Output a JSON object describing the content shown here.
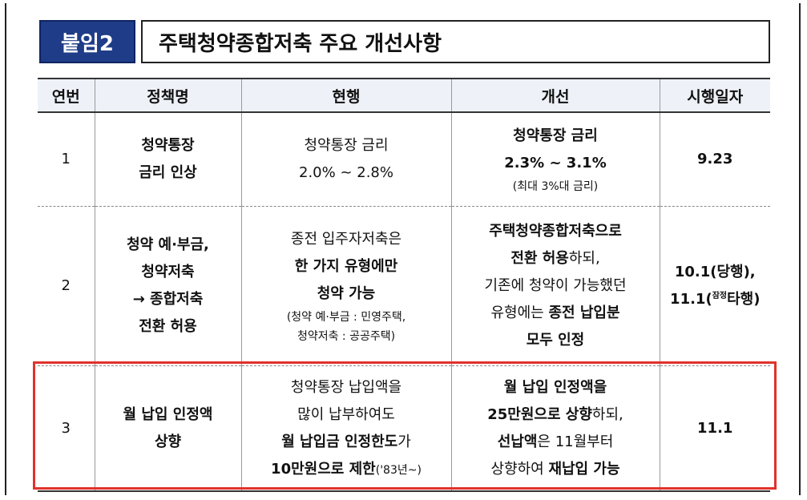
{
  "badge": "붙임2",
  "title": "주택청약종합저축 주요 개선사항",
  "headers": [
    "연번",
    "정책명",
    "현행",
    "개선",
    "시행일자"
  ],
  "rows": [
    {
      "no": "1",
      "policy": [
        "청약통장",
        "금리 인상"
      ],
      "current": [
        "청약통장 금리",
        "2.0% ~ 2.8%"
      ],
      "improved": [
        "청약통장 금리",
        "2.3% ~ 3.1%",
        "(최대 3%대 금리)"
      ],
      "date": "9.23"
    },
    {
      "no": "2",
      "policy": [
        "청약 예·부금,",
        "청약저축",
        "→ 종합저축",
        "전환 허용"
      ],
      "current": [
        "종전 입주자저축은",
        "한 가지 유형에만",
        "청약 가능",
        "(청약 예·부금 : 민영주택,",
        "청약저축 : 공공주택)"
      ],
      "improved": [
        "주택청약종합저축으로",
        "전환 허용",
        "하되,",
        "기존에 청약이 가능했던",
        "유형에는 ",
        "종전 납입분",
        "모두 인정"
      ],
      "date": [
        "10.1(당행),",
        "11.1(",
        "잠정",
        "타행)"
      ]
    },
    {
      "no": "3",
      "policy": [
        "월 납입 인정액",
        "상향"
      ],
      "current": [
        "청약통장 납입액을",
        "많이 납부하여도",
        "월 납입금 인정한도",
        "가",
        "10만원으로 제한",
        "('83년~)"
      ],
      "improved": [
        "월 납입 인정액을",
        "25만원으로 상향",
        "하되,",
        "선납액",
        "은 11월부터",
        "상향하여 ",
        "재납입 가능"
      ],
      "date": "11.1"
    }
  ]
}
